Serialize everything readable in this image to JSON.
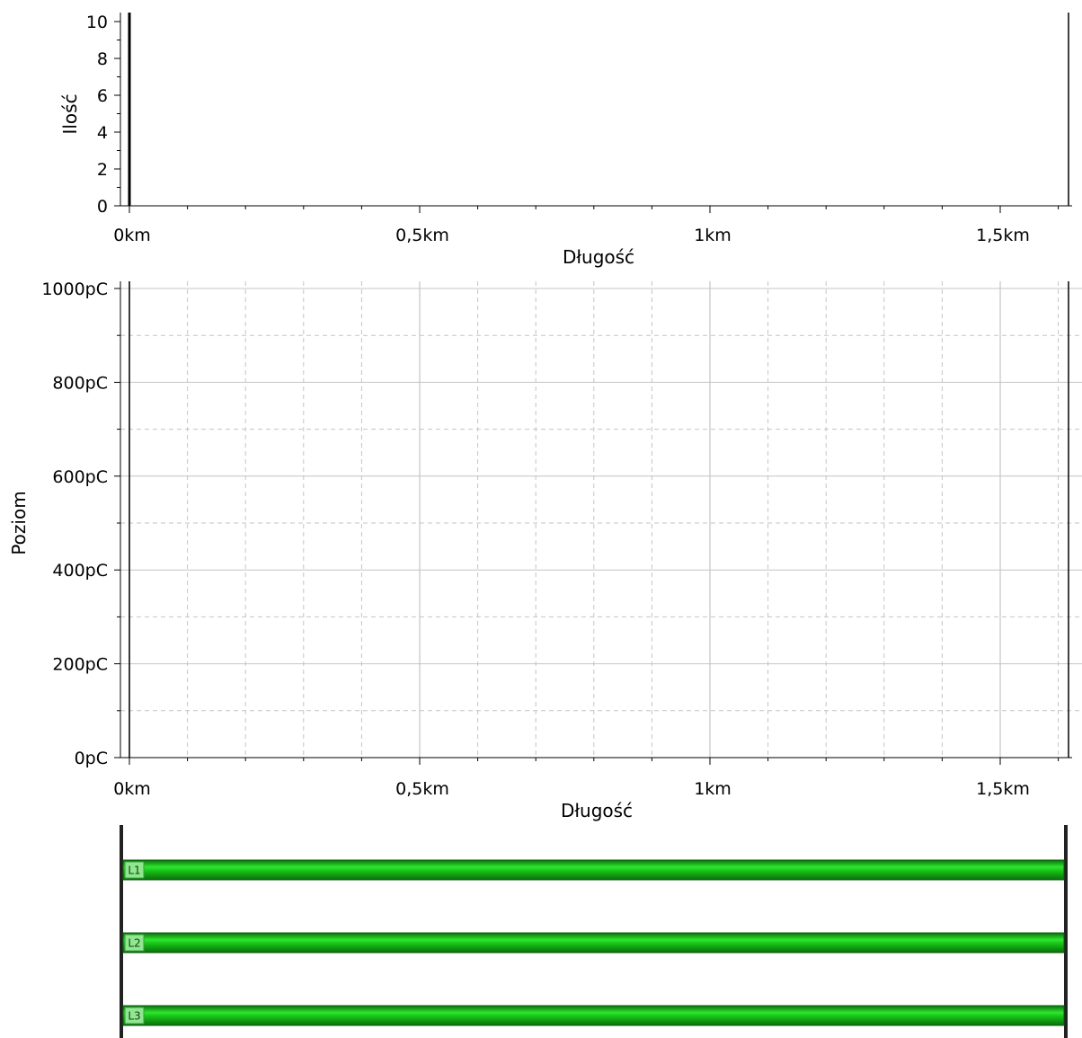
{
  "chart_data": [
    {
      "type": "bar",
      "title": "",
      "xlabel": "Długość",
      "ylabel": "Ilość",
      "xlim_km": [
        0,
        1.62
      ],
      "ylim": [
        0,
        10
      ],
      "x_ticks": [
        {
          "v": 0,
          "label": "0km"
        },
        {
          "v": 0.5,
          "label": "0,5km"
        },
        {
          "v": 1,
          "label": "1km"
        },
        {
          "v": 1.5,
          "label": "1,5km"
        }
      ],
      "y_ticks": [
        {
          "v": 0,
          "label": "0"
        },
        {
          "v": 2,
          "label": "2"
        },
        {
          "v": 4,
          "label": "4"
        },
        {
          "v": 6,
          "label": "6"
        },
        {
          "v": 8,
          "label": "8"
        },
        {
          "v": 10,
          "label": "10"
        }
      ],
      "grid": false,
      "series": [
        {
          "values": []
        }
      ]
    },
    {
      "type": "scatter",
      "title": "",
      "xlabel": "Długość",
      "ylabel": "Poziom",
      "xlim_km": [
        0,
        1.62
      ],
      "ylim_pC": [
        0,
        1000
      ],
      "x_ticks": [
        {
          "v": 0,
          "label": "0km"
        },
        {
          "v": 0.5,
          "label": "0,5km"
        },
        {
          "v": 1,
          "label": "1km"
        },
        {
          "v": 1.5,
          "label": "1,5km"
        }
      ],
      "y_ticks": [
        {
          "v": 0,
          "label": "0pC"
        },
        {
          "v": 200,
          "label": "200pC"
        },
        {
          "v": 400,
          "label": "400pC"
        },
        {
          "v": 600,
          "label": "600pC"
        },
        {
          "v": 800,
          "label": "800pC"
        },
        {
          "v": 1000,
          "label": "1000pC"
        }
      ],
      "grid": true,
      "series": [
        {
          "values": []
        }
      ]
    }
  ],
  "cable": {
    "phases": [
      {
        "label": "L1",
        "color": "#22cc22"
      },
      {
        "label": "L2",
        "color": "#22cc22"
      },
      {
        "label": "L3",
        "color": "#22cc22"
      }
    ]
  }
}
